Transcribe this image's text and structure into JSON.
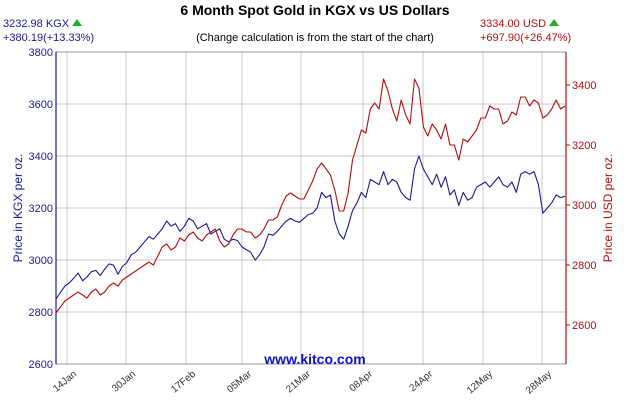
{
  "header": {
    "kgx_price": "3232.98 KGX",
    "kgx_change": "+380.19(+13.33%)",
    "title": "6 Month Spot Gold in KGX vs US Dollars",
    "subtitle": "(Change calculation is from the start of the chart)",
    "usd_price": "3334.00 USD",
    "usd_change": "+697.90(+26.47%)",
    "up_icon": "green-up-triangle-icon"
  },
  "watermark": "www.kitco.com",
  "colors": {
    "kgx": "#1a1a8c",
    "usd": "#b01010",
    "grid": "#c8c8c8",
    "up": "#1fae1f"
  },
  "chart_data": {
    "type": "line",
    "title": "6 Month Spot Gold in KGX vs US Dollars",
    "subtitle": "(Change calculation is from the start of the chart)",
    "xlabel": "",
    "x_ticks": [
      "14Jan",
      "30Jan",
      "17Feb",
      "05Mar",
      "21Mar",
      "08Apr",
      "24Apr",
      "12May",
      "28May"
    ],
    "y_left": {
      "label": "Price in KGX per oz.",
      "ylim": [
        2600,
        3800
      ],
      "ticks": [
        "2600",
        "2800",
        "3000",
        "3200",
        "3400",
        "3600",
        "3800"
      ]
    },
    "y_right": {
      "label": "Price in USD per oz.",
      "ylim": [
        2470,
        3510
      ],
      "ticks": [
        "2600",
        "2800",
        "3000",
        "3200",
        "3400"
      ]
    },
    "grid": true,
    "series": [
      {
        "name": "KGX",
        "axis": "left",
        "values": [
          2850,
          2875,
          2900,
          2912,
          2930,
          2950,
          2920,
          2935,
          2955,
          2960,
          2940,
          2965,
          2985,
          2980,
          2945,
          2975,
          2990,
          3020,
          3030,
          3050,
          3070,
          3090,
          3080,
          3100,
          3120,
          3150,
          3130,
          3140,
          3110,
          3130,
          3160,
          3150,
          3120,
          3130,
          3140,
          3100,
          3110,
          3120,
          3080,
          3070,
          3080,
          3075,
          3050,
          3040,
          3030,
          3000,
          3020,
          3050,
          3100,
          3095,
          3110,
          3130,
          3150,
          3160,
          3150,
          3145,
          3160,
          3175,
          3180,
          3200,
          3260,
          3240,
          3250,
          3150,
          3100,
          3080,
          3130,
          3190,
          3220,
          3260,
          3240,
          3310,
          3300,
          3290,
          3340,
          3290,
          3310,
          3300,
          3260,
          3240,
          3230,
          3350,
          3400,
          3350,
          3320,
          3290,
          3330,
          3280,
          3320,
          3250,
          3270,
          3210,
          3260,
          3230,
          3240,
          3280,
          3290,
          3300,
          3280,
          3300,
          3320,
          3290,
          3280,
          3300,
          3260,
          3330,
          3340,
          3330,
          3340,
          3290,
          3180,
          3200,
          3220,
          3250,
          3240,
          3245
        ]
      },
      {
        "name": "USD",
        "axis": "right",
        "values": [
          2640,
          2660,
          2680,
          2690,
          2700,
          2710,
          2700,
          2690,
          2710,
          2720,
          2700,
          2710,
          2730,
          2740,
          2730,
          2750,
          2760,
          2770,
          2780,
          2790,
          2800,
          2810,
          2800,
          2830,
          2860,
          2870,
          2850,
          2860,
          2890,
          2880,
          2900,
          2910,
          2890,
          2880,
          2900,
          2910,
          2920,
          2880,
          2860,
          2870,
          2900,
          2920,
          2920,
          2910,
          2910,
          2890,
          2900,
          2920,
          2950,
          2950,
          2960,
          3000,
          3030,
          3040,
          3030,
          3020,
          3020,
          3050,
          3080,
          3120,
          3140,
          3120,
          3100,
          3050,
          2980,
          2980,
          3040,
          3150,
          3200,
          3250,
          3240,
          3320,
          3340,
          3320,
          3420,
          3380,
          3320,
          3280,
          3350,
          3300,
          3270,
          3420,
          3390,
          3260,
          3230,
          3270,
          3250,
          3220,
          3270,
          3200,
          3200,
          3150,
          3220,
          3210,
          3230,
          3250,
          3290,
          3290,
          3330,
          3320,
          3320,
          3270,
          3280,
          3310,
          3300,
          3360,
          3360,
          3330,
          3350,
          3340,
          3290,
          3300,
          3320,
          3350,
          3320,
          3330
        ]
      }
    ]
  }
}
